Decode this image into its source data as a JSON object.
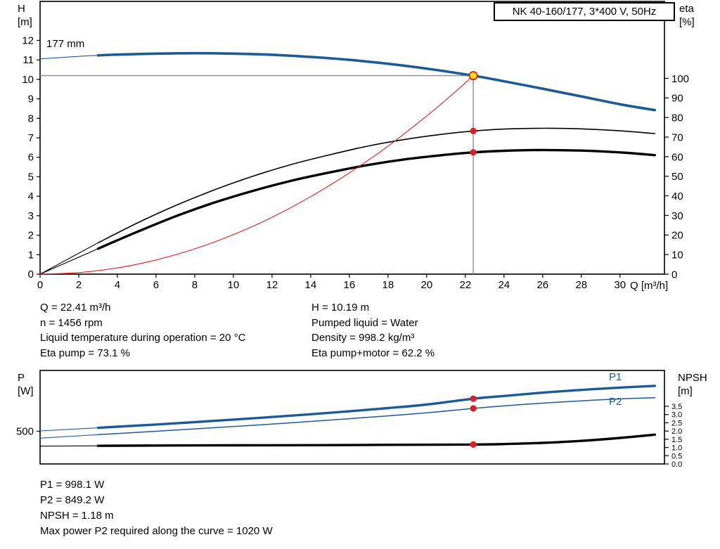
{
  "labels": {
    "h_symbol": "H",
    "h_unit": "[m]",
    "eta_symbol": "eta",
    "eta_unit": "[%]",
    "q_axis": "Q [m³/h]",
    "p_symbol": "P",
    "p_unit": "[W]",
    "npsh_symbol": "NPSH",
    "npsh_unit": "[m]",
    "impeller": "177 mm",
    "p1": "P1",
    "p2": "P2"
  },
  "results_top": {
    "left": [
      "Q = 22.41 m³/h",
      "n = 1456 rpm",
      "Liquid temperature during operation = 20 °C",
      "Eta pump = 73.1 %"
    ],
    "right": [
      "H = 10.19 m",
      "Pumped liquid = Water",
      "Density = 998.2 kg/m³",
      "Eta pump+motor = 62.2 %"
    ]
  },
  "results_bottom": [
    "P1 = 998.1 W",
    "P2 = 849.2 W",
    "NPSH = 1.18 m",
    "Max power P2 required along the curve = 1020 W"
  ],
  "colors": {
    "blue": "#1e5a96",
    "red": "#dd1f1f",
    "yellow": "#ffe200",
    "gray": "#8a8a8a",
    "black": "#000000"
  },
  "chart_data": [
    {
      "id": "hq",
      "type": "line",
      "title": "NK 40-160/177, 3*400 V, 50Hz",
      "xlabel": "Q [m³/h]",
      "ylabel_left": "H [m]",
      "ylabel_right": "eta [%]",
      "xlim": [
        0,
        32.3
      ],
      "ylim_left": [
        0,
        14
      ],
      "ylim_right": [
        0,
        139.3
      ],
      "x_ticks": [
        0,
        2,
        4,
        6,
        8,
        10,
        12,
        14,
        16,
        18,
        20,
        22,
        24,
        26,
        28,
        30
      ],
      "y_ticks_left": [
        0,
        1,
        2,
        3,
        4,
        5,
        6,
        7,
        8,
        9,
        10,
        11,
        12
      ],
      "y_ticks_right": [
        0,
        10,
        20,
        30,
        40,
        50,
        60,
        70,
        80,
        90,
        100
      ],
      "right_tick_font": 15,
      "impeller_label": "177 mm",
      "series": [
        {
          "name": "head-curve-177mm",
          "axis": "left",
          "color": "blue",
          "width": 3.6,
          "thin_until": 3,
          "points": [
            [
              0,
              11.05
            ],
            [
              2,
              11.18
            ],
            [
              3,
              11.23
            ],
            [
              4,
              11.27
            ],
            [
              6,
              11.32
            ],
            [
              8,
              11.34
            ],
            [
              10,
              11.32
            ],
            [
              12,
              11.26
            ],
            [
              14,
              11.15
            ],
            [
              16,
              11.0
            ],
            [
              18,
              10.8
            ],
            [
              20,
              10.55
            ],
            [
              22.41,
              10.19
            ],
            [
              24,
              9.9
            ],
            [
              26,
              9.52
            ],
            [
              28,
              9.12
            ],
            [
              30,
              8.72
            ],
            [
              31.8,
              8.42
            ]
          ]
        },
        {
          "name": "eta-pump-curve",
          "axis": "right",
          "color": "black",
          "width": 1.6,
          "thin_until": 3,
          "points": [
            [
              0,
              0
            ],
            [
              3,
              16
            ],
            [
              5,
              26
            ],
            [
              7,
              35
            ],
            [
              9,
              43
            ],
            [
              11,
              50
            ],
            [
              13,
              56
            ],
            [
              15,
              61
            ],
            [
              17,
              65.5
            ],
            [
              19,
              69
            ],
            [
              21,
              71.7
            ],
            [
              22.41,
              73.1
            ],
            [
              24,
              74.1
            ],
            [
              26,
              74.5
            ],
            [
              28,
              74.2
            ],
            [
              30,
              73.2
            ],
            [
              31.8,
              71.8
            ]
          ]
        },
        {
          "name": "eta-pump-motor-curve",
          "axis": "right",
          "color": "black",
          "width": 3.4,
          "thin_until": 3,
          "points": [
            [
              0,
              0
            ],
            [
              3,
              13
            ],
            [
              5,
              21.5
            ],
            [
              7,
              29.5
            ],
            [
              9,
              36.5
            ],
            [
              11,
              42.5
            ],
            [
              13,
              47.7
            ],
            [
              15,
              52
            ],
            [
              17,
              55.8
            ],
            [
              19,
              58.8
            ],
            [
              21,
              61
            ],
            [
              22.41,
              62.2
            ],
            [
              24,
              63
            ],
            [
              26,
              63.4
            ],
            [
              28,
              63.1
            ],
            [
              30,
              62.2
            ],
            [
              31.8,
              60.8
            ]
          ]
        },
        {
          "name": "system-curve",
          "axis": "left",
          "color": "red",
          "width": 1.1,
          "points": [
            [
              0,
              0
            ],
            [
              2,
              0.08
            ],
            [
              4,
              0.32
            ],
            [
              6,
              0.73
            ],
            [
              8,
              1.3
            ],
            [
              10,
              2.03
            ],
            [
              12,
              2.92
            ],
            [
              14,
              3.98
            ],
            [
              16,
              5.2
            ],
            [
              18,
              6.57
            ],
            [
              20,
              8.12
            ],
            [
              21,
              8.95
            ],
            [
              22,
              9.82
            ],
            [
              22.41,
              10.19
            ]
          ]
        }
      ],
      "duty_point": {
        "q": 22.41,
        "h": 10.19
      },
      "markers": [
        {
          "name": "eta-pump-marker",
          "axis": "right",
          "q": 22.41,
          "v": 73.1
        },
        {
          "name": "eta-pump-motor-marker",
          "axis": "right",
          "q": 22.41,
          "v": 62.2
        }
      ]
    },
    {
      "id": "power",
      "type": "line",
      "ylabel_left": "P [W]",
      "ylabel_right": "NPSH [m]",
      "xlim": [
        0,
        32.3
      ],
      "ylim_left": [
        0,
        1430
      ],
      "ylim_right": [
        0,
        5.68
      ],
      "y_ticks_left": [
        500
      ],
      "y_ticks_right": [
        "0.0",
        "0.5",
        "1.0",
        "1.5",
        "2.0",
        "2.5",
        "3.0",
        "3.5"
      ],
      "right_tick_font": 11,
      "series": [
        {
          "name": "p1-curve",
          "axis": "left",
          "color": "blue",
          "width": 3.4,
          "thin_until": 3,
          "points": [
            [
              0,
              505
            ],
            [
              3,
              553
            ],
            [
              4,
              570
            ],
            [
              6,
              603
            ],
            [
              8,
              640
            ],
            [
              10,
              678
            ],
            [
              12,
              718
            ],
            [
              14,
              760
            ],
            [
              16,
              805
            ],
            [
              18,
              855
            ],
            [
              20,
              908
            ],
            [
              22.41,
              998.1
            ],
            [
              24,
              1040
            ],
            [
              26,
              1090
            ],
            [
              28,
              1132
            ],
            [
              30,
              1168
            ],
            [
              31.8,
              1195
            ]
          ]
        },
        {
          "name": "p2-curve",
          "axis": "left",
          "color": "blue",
          "width": 1.5,
          "thin_until": 3,
          "points": [
            [
              0,
              395
            ],
            [
              3,
              448
            ],
            [
              4,
              465
            ],
            [
              6,
              500
            ],
            [
              8,
              537
            ],
            [
              10,
              573
            ],
            [
              12,
              610
            ],
            [
              14,
              650
            ],
            [
              16,
              692
            ],
            [
              18,
              735
            ],
            [
              20,
              782
            ],
            [
              22.41,
              849.2
            ],
            [
              24,
              888
            ],
            [
              26,
              930
            ],
            [
              28,
              965
            ],
            [
              30,
              995
            ],
            [
              31.8,
              1013
            ]
          ]
        },
        {
          "name": "npsh-curve",
          "axis": "right",
          "color": "black",
          "width": 3.4,
          "thin_until": 3,
          "points": [
            [
              0,
              1.08
            ],
            [
              3,
              1.1
            ],
            [
              6,
              1.12
            ],
            [
              10,
              1.13
            ],
            [
              14,
              1.14
            ],
            [
              18,
              1.16
            ],
            [
              22.41,
              1.18
            ],
            [
              24,
              1.21
            ],
            [
              26,
              1.28
            ],
            [
              28,
              1.4
            ],
            [
              30,
              1.58
            ],
            [
              31.8,
              1.78
            ]
          ]
        }
      ],
      "markers": [
        {
          "name": "p1-duty-marker",
          "axis": "left",
          "q": 22.41,
          "v": 998.1
        },
        {
          "name": "p2-duty-marker",
          "axis": "left",
          "q": 22.41,
          "v": 849.2
        },
        {
          "name": "npsh-duty-marker",
          "axis": "right",
          "q": 22.41,
          "v": 1.18
        }
      ]
    }
  ]
}
